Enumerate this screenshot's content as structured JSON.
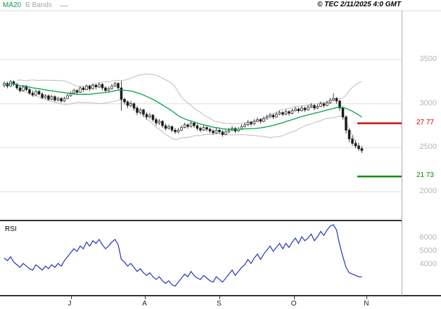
{
  "header": {
    "ma_label": "MA20",
    "bbands_label": "B Bands",
    "copyright": "© TEC 2/11/2025 4:0 GMT"
  },
  "rsi_panel": {
    "label": "RSI"
  },
  "colors": {
    "ma": "#00a14b",
    "bands": "#bdbdbd",
    "candle": "#1a1a1a",
    "rsi": "#2233bb",
    "grid": "#dedede",
    "level_red": "#cc0000",
    "level_green": "#008800",
    "axis_text": "#b5b5b5"
  },
  "chart_data": {
    "type": "candlestick",
    "title": "",
    "price_axis": {
      "ticks": [
        3500,
        3000,
        2500,
        2000
      ],
      "ylim": [
        1950,
        3620
      ]
    },
    "levels": [
      {
        "label": "27 77",
        "value": 2777,
        "color": "#cc0000"
      },
      {
        "label": "21 73",
        "value": 2173,
        "color": "#008800"
      }
    ],
    "indicators": {
      "ma_period": 20,
      "bb_period": 20,
      "bb_stddev": 2
    },
    "x_ticks": [
      {
        "label": "J",
        "day": 21
      },
      {
        "label": "A",
        "day": 44.5
      },
      {
        "label": "S",
        "day": 68
      },
      {
        "label": "O",
        "day": 91.5
      },
      {
        "label": "N",
        "day": 114.5
      }
    ],
    "candles_ohlc": [
      [
        3210,
        3255,
        3185,
        3230
      ],
      [
        3230,
        3250,
        3175,
        3200
      ],
      [
        3200,
        3270,
        3190,
        3250
      ],
      [
        3250,
        3265,
        3200,
        3220
      ],
      [
        3220,
        3240,
        3160,
        3180
      ],
      [
        3180,
        3205,
        3130,
        3150
      ],
      [
        3150,
        3210,
        3140,
        3190
      ],
      [
        3190,
        3215,
        3145,
        3160
      ],
      [
        3160,
        3180,
        3100,
        3120
      ],
      [
        3120,
        3150,
        3080,
        3100
      ],
      [
        3100,
        3160,
        3090,
        3140
      ],
      [
        3140,
        3155,
        3095,
        3110
      ],
      [
        3110,
        3130,
        3050,
        3070
      ],
      [
        3070,
        3110,
        3055,
        3090
      ],
      [
        3090,
        3105,
        3030,
        3050
      ],
      [
        3050,
        3100,
        3040,
        3080
      ],
      [
        3080,
        3095,
        3020,
        3040
      ],
      [
        3040,
        3080,
        3025,
        3060
      ],
      [
        3060,
        3075,
        3010,
        3030
      ],
      [
        3030,
        3080,
        3020,
        3060
      ],
      [
        3060,
        3110,
        3050,
        3090
      ],
      [
        3090,
        3140,
        3080,
        3120
      ],
      [
        3120,
        3170,
        3110,
        3150
      ],
      [
        3150,
        3165,
        3105,
        3130
      ],
      [
        3130,
        3200,
        3120,
        3180
      ],
      [
        3180,
        3195,
        3135,
        3160
      ],
      [
        3160,
        3220,
        3150,
        3200
      ],
      [
        3200,
        3215,
        3145,
        3170
      ],
      [
        3170,
        3230,
        3160,
        3210
      ],
      [
        3210,
        3225,
        3165,
        3190
      ],
      [
        3190,
        3240,
        3180,
        3220
      ],
      [
        3220,
        3235,
        3155,
        3180
      ],
      [
        3180,
        3200,
        3125,
        3150
      ],
      [
        3150,
        3195,
        3140,
        3170
      ],
      [
        3170,
        3225,
        3160,
        3200
      ],
      [
        3200,
        3250,
        3190,
        3230
      ],
      [
        3230,
        3245,
        3155,
        3180
      ],
      [
        3180,
        3260,
        2920,
        3050
      ],
      [
        3050,
        3070,
        2990,
        3020
      ],
      [
        3020,
        3040,
        2950,
        2980
      ],
      [
        2980,
        3030,
        2960,
        3000
      ],
      [
        3000,
        3015,
        2920,
        2950
      ],
      [
        2950,
        2975,
        2870,
        2900
      ],
      [
        2900,
        2950,
        2880,
        2930
      ],
      [
        2930,
        2945,
        2850,
        2880
      ],
      [
        2880,
        2905,
        2820,
        2850
      ],
      [
        2850,
        2895,
        2830,
        2870
      ],
      [
        2870,
        2885,
        2795,
        2820
      ],
      [
        2820,
        2845,
        2750,
        2780
      ],
      [
        2780,
        2825,
        2760,
        2800
      ],
      [
        2800,
        2815,
        2725,
        2750
      ],
      [
        2750,
        2775,
        2695,
        2720
      ],
      [
        2720,
        2765,
        2705,
        2740
      ],
      [
        2740,
        2755,
        2675,
        2700
      ],
      [
        2700,
        2725,
        2655,
        2680
      ],
      [
        2680,
        2725,
        2665,
        2700
      ],
      [
        2700,
        2755,
        2690,
        2730
      ],
      [
        2730,
        2785,
        2720,
        2760
      ],
      [
        2760,
        2775,
        2715,
        2740
      ],
      [
        2740,
        2805,
        2730,
        2780
      ],
      [
        2780,
        2795,
        2725,
        2750
      ],
      [
        2750,
        2770,
        2695,
        2720
      ],
      [
        2720,
        2740,
        2675,
        2700
      ],
      [
        2700,
        2755,
        2690,
        2730
      ],
      [
        2730,
        2745,
        2685,
        2710
      ],
      [
        2710,
        2730,
        2665,
        2690
      ],
      [
        2690,
        2710,
        2645,
        2670
      ],
      [
        2670,
        2725,
        2655,
        2700
      ],
      [
        2700,
        2715,
        2655,
        2680
      ],
      [
        2680,
        2700,
        2625,
        2650
      ],
      [
        2650,
        2705,
        2640,
        2680
      ],
      [
        2680,
        2725,
        2665,
        2700
      ],
      [
        2700,
        2745,
        2690,
        2720
      ],
      [
        2720,
        2735,
        2665,
        2690
      ],
      [
        2690,
        2735,
        2680,
        2710
      ],
      [
        2710,
        2765,
        2700,
        2740
      ],
      [
        2740,
        2785,
        2730,
        2760
      ],
      [
        2760,
        2815,
        2750,
        2790
      ],
      [
        2790,
        2805,
        2745,
        2770
      ],
      [
        2770,
        2825,
        2760,
        2800
      ],
      [
        2800,
        2845,
        2790,
        2820
      ],
      [
        2820,
        2835,
        2775,
        2800
      ],
      [
        2800,
        2855,
        2790,
        2830
      ],
      [
        2830,
        2875,
        2820,
        2850
      ],
      [
        2850,
        2895,
        2840,
        2870
      ],
      [
        2870,
        2885,
        2825,
        2850
      ],
      [
        2850,
        2905,
        2840,
        2880
      ],
      [
        2880,
        2925,
        2870,
        2900
      ],
      [
        2900,
        2915,
        2855,
        2880
      ],
      [
        2880,
        2935,
        2870,
        2910
      ],
      [
        2910,
        2925,
        2865,
        2890
      ],
      [
        2890,
        2945,
        2880,
        2920
      ],
      [
        2920,
        2965,
        2910,
        2940
      ],
      [
        2940,
        2955,
        2895,
        2920
      ],
      [
        2920,
        2975,
        2910,
        2950
      ],
      [
        2950,
        2965,
        2905,
        2930
      ],
      [
        2930,
        2985,
        2920,
        2960
      ],
      [
        2960,
        3005,
        2950,
        2980
      ],
      [
        2980,
        2995,
        2925,
        2950
      ],
      [
        2950,
        2995,
        2940,
        2970
      ],
      [
        2970,
        3025,
        2960,
        3000
      ],
      [
        3000,
        3015,
        2955,
        2980
      ],
      [
        2980,
        3035,
        2970,
        3010
      ],
      [
        3010,
        3065,
        3000,
        3040
      ],
      [
        3040,
        3120,
        3030,
        3060
      ],
      [
        3060,
        3075,
        3000,
        3030
      ],
      [
        3030,
        3045,
        2920,
        2950
      ],
      [
        2950,
        2970,
        2820,
        2850
      ],
      [
        2850,
        2870,
        2660,
        2700
      ],
      [
        2700,
        2720,
        2560,
        2600
      ],
      [
        2600,
        2640,
        2520,
        2550
      ],
      [
        2550,
        2585,
        2495,
        2520
      ],
      [
        2520,
        2555,
        2465,
        2490
      ],
      [
        2490,
        2520,
        2440,
        2470
      ]
    ],
    "rsi": {
      "ticks": [
        {
          "label": "6000",
          "value": 60
        },
        {
          "label": "5000",
          "value": 50
        },
        {
          "label": "4000",
          "value": 40
        }
      ],
      "values": [
        45,
        43,
        46,
        42,
        40,
        38,
        41,
        39,
        37,
        36,
        40,
        38,
        36,
        39,
        37,
        40,
        38,
        41,
        39,
        43,
        46,
        49,
        52,
        50,
        54,
        52,
        57,
        54,
        58,
        56,
        59,
        55,
        52,
        54,
        57,
        59,
        55,
        44,
        42,
        39,
        41,
        38,
        35,
        37,
        34,
        32,
        34,
        31,
        29,
        31,
        28,
        26,
        28,
        25,
        24,
        27,
        30,
        33,
        31,
        35,
        32,
        30,
        29,
        32,
        30,
        28,
        27,
        31,
        29,
        27,
        30,
        33,
        36,
        32,
        35,
        38,
        40,
        44,
        41,
        45,
        48,
        44,
        48,
        51,
        54,
        50,
        53,
        56,
        52,
        56,
        53,
        57,
        60,
        56,
        61,
        58,
        60,
        63,
        58,
        61,
        65,
        62,
        66,
        69,
        70,
        66,
        55,
        46,
        38,
        34,
        33,
        32,
        31,
        31
      ]
    }
  }
}
